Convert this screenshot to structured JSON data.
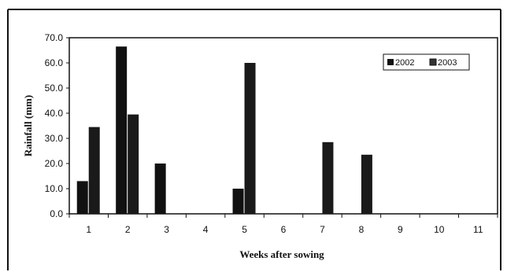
{
  "chart_data": {
    "type": "bar",
    "categories": [
      "1",
      "2",
      "3",
      "4",
      "5",
      "6",
      "7",
      "8",
      "9",
      "10",
      "11"
    ],
    "series": [
      {
        "name": "2002",
        "values": [
          13.0,
          66.5,
          20.0,
          0,
          10.0,
          0,
          0,
          0,
          0,
          0,
          0
        ],
        "color": "#111111"
      },
      {
        "name": "2003",
        "values": [
          34.5,
          39.5,
          0,
          0,
          60.0,
          0,
          28.5,
          23.5,
          0,
          0,
          0
        ],
        "color": "#1a1a1a"
      }
    ],
    "xlabel": "Weeks after sowing",
    "ylabel": "Rainfall (mm)",
    "ylim": [
      0,
      70
    ],
    "yticks": [
      "0.0",
      "10.0",
      "20.0",
      "30.0",
      "40.0",
      "50.0",
      "60.0",
      "70.0"
    ],
    "grid": false,
    "legend": "top-right"
  }
}
